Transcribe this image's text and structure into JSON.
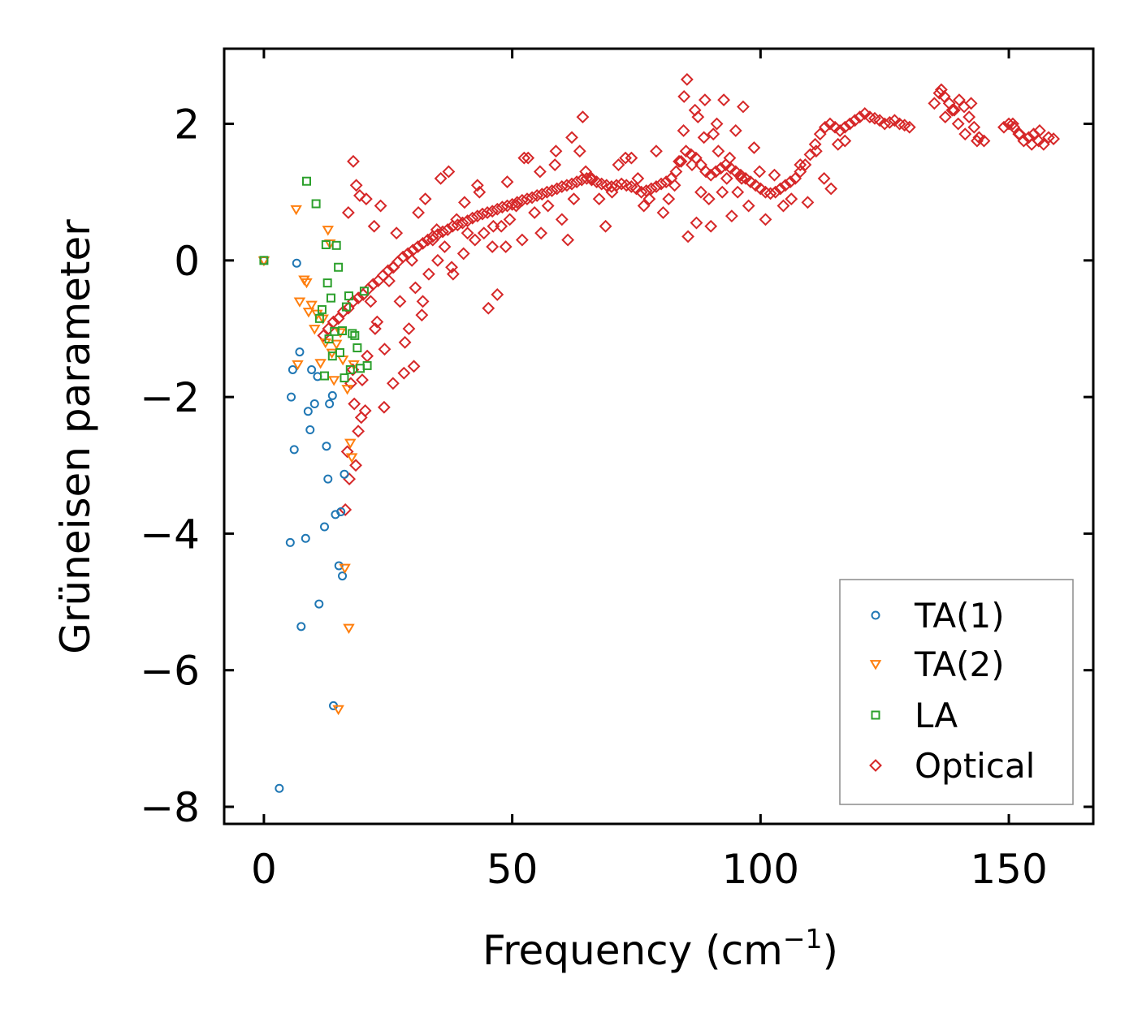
{
  "chart_data": {
    "type": "scatter",
    "xlabel": "Frequency (cm",
    "xlabel_sup": "−1",
    "xlabel_close": ")",
    "ylabel": "Grüneisen parameter",
    "xlim": [
      -8,
      167
    ],
    "ylim": [
      -8.25,
      3.1
    ],
    "xticks": [
      0,
      50,
      100,
      150
    ],
    "yticks": [
      2,
      0,
      -2,
      -4,
      -6,
      -8
    ],
    "ytick_labels": [
      "2",
      "0",
      "−2",
      "−4",
      "−6",
      "−8"
    ],
    "legend_position": "lower-right",
    "series": [
      {
        "name": "TA(1)",
        "marker": "circle",
        "color": "#1f77b4",
        "x": [
          0,
          3.1,
          5.5,
          5.3,
          5.8,
          6.1,
          6.6,
          7.2,
          7.5,
          8.4,
          8.9,
          9.3,
          9.6,
          10.2,
          10.8,
          11.1,
          12.2,
          12.6,
          12.9,
          13.2,
          13.8,
          14.0,
          14.4,
          15.1,
          15.5,
          15.8,
          16.2
        ],
        "y": [
          0,
          -7.73,
          -2.0,
          -4.13,
          -1.6,
          -2.77,
          -0.04,
          -1.34,
          -5.36,
          -4.07,
          -2.21,
          -2.48,
          -1.6,
          -2.1,
          -1.7,
          -5.03,
          -3.9,
          -2.72,
          -3.2,
          -2.1,
          -1.98,
          -6.52,
          -3.72,
          -4.47,
          -3.68,
          -4.62,
          -3.13
        ]
      },
      {
        "name": "TA(2)",
        "marker": "triangle-down",
        "color": "#ff7f0e",
        "x": [
          0,
          6.5,
          6.8,
          7.2,
          8.1,
          8.6,
          9.0,
          9.6,
          10.2,
          10.7,
          11.4,
          11.9,
          12.4,
          12.9,
          13.3,
          13.7,
          14.1,
          14.6,
          15.0,
          15.4,
          15.9,
          16.3,
          16.8,
          17.1,
          17.4,
          17.7,
          18.1
        ],
        "y": [
          0,
          0.75,
          -1.52,
          -0.6,
          -0.28,
          -0.32,
          -0.75,
          -0.65,
          -1.0,
          -0.78,
          -1.5,
          -0.85,
          -1.2,
          0.45,
          0.25,
          -1.35,
          -1.75,
          -1.22,
          -6.57,
          -1.05,
          -1.45,
          -4.5,
          -1.88,
          -5.38,
          -2.67,
          -2.88,
          -1.52
        ]
      },
      {
        "name": "LA",
        "marker": "square",
        "color": "#2ca02c",
        "x": [
          0,
          8.6,
          10.5,
          11.2,
          11.7,
          12.2,
          12.5,
          12.8,
          13.1,
          13.5,
          13.8,
          14.2,
          14.6,
          15.0,
          15.3,
          15.8,
          16.2,
          16.6,
          17.1,
          17.4,
          17.8,
          18.3,
          18.8,
          19.4,
          20.2,
          20.8
        ],
        "y": [
          0,
          1.16,
          0.83,
          -0.85,
          -0.72,
          -1.69,
          0.23,
          -0.33,
          -1.15,
          -0.55,
          -1.4,
          -1.04,
          0.22,
          -0.1,
          -1.35,
          -1.03,
          -1.72,
          -0.68,
          -0.52,
          -1.6,
          -1.07,
          -1.1,
          -1.28,
          -1.58,
          -0.45,
          -1.54
        ]
      },
      {
        "name": "Optical",
        "marker": "diamond",
        "color": "#d62728",
        "x": [
          12,
          13,
          14,
          15,
          16,
          17,
          18,
          19,
          20,
          21,
          22,
          23,
          24,
          25,
          26,
          27,
          28,
          29,
          30,
          31,
          32,
          33,
          34,
          35,
          36,
          37,
          38,
          39,
          40,
          41,
          42,
          43,
          44,
          45,
          46,
          47,
          48,
          49,
          50,
          51,
          52,
          53,
          54,
          55,
          56,
          57,
          58,
          59,
          60,
          61,
          62,
          63,
          64,
          65,
          66,
          67,
          68,
          69,
          70,
          71,
          72,
          73,
          74,
          75,
          76,
          77,
          78,
          79,
          80,
          81,
          82,
          83,
          84,
          85,
          86,
          87,
          88,
          89,
          90,
          91,
          92,
          93,
          94,
          95,
          96,
          97,
          98,
          99,
          100,
          101,
          102,
          103,
          104,
          105,
          106,
          107,
          108,
          109,
          110,
          111,
          112,
          113,
          114,
          115,
          116,
          117,
          118,
          119,
          120,
          121,
          122,
          123,
          124,
          125,
          126,
          127,
          128,
          129,
          130,
          135,
          136,
          137,
          138,
          139,
          140,
          141,
          142,
          143,
          144,
          145,
          149,
          150,
          151,
          152,
          153,
          154,
          155,
          156,
          157,
          158,
          159,
          17.5,
          18.2,
          19.0,
          16.8,
          18.5,
          17.2,
          19.6,
          20.4,
          17.9,
          16.4,
          21.5,
          22.8,
          24.3,
          26.1,
          27.4,
          29.2,
          30.5,
          31.8,
          33.2,
          35.0,
          36.4,
          38.1,
          40.2,
          42.5,
          44.3,
          46.0,
          47.8,
          49.5,
          52.0,
          54.5,
          57.2,
          60.0,
          62.4,
          64.8,
          67.5,
          70.1,
          72.8,
          75.3,
          77.6,
          80.4,
          82.7,
          84.5,
          86.2,
          88.0,
          89.6,
          91.5,
          93.2,
          95.4,
          97.6,
          99.8,
          18.0,
          18.6,
          17.0,
          19.3,
          20.6,
          22.2,
          23.5,
          25.2,
          26.7,
          28.4,
          29.8,
          31.1,
          32.5,
          34.0,
          35.6,
          37.2,
          38.8,
          41.0,
          43.4,
          45.2,
          47.0,
          48.7,
          50.8,
          53.2,
          55.8,
          58.6,
          61.2,
          63.6,
          66.0,
          68.8,
          71.4,
          74.0,
          76.5,
          79.0,
          81.5,
          83.6,
          85.4,
          87.1,
          88.8,
          90.5,
          92.3,
          94.2,
          96.5,
          98.7,
          101.0,
          102.8,
          104.6,
          106.2,
          108.0,
          109.5,
          111.2,
          112.8,
          114.2,
          115.6,
          117.0,
          85.2,
          84.6,
          86.8,
          87.4,
          88.6,
          90.0,
          91.2,
          92.6,
          93.8,
          95.0,
          96.2,
          64.2,
          62.0,
          58.8,
          55.6,
          52.4,
          49.0,
          46.2,
          43.0,
          40.4,
          37.8,
          34.8,
          32.0,
          30.2,
          28.2,
          26.0,
          24.2,
          22.4,
          20.8,
          19.8,
          136.4,
          137.2,
          138.6,
          139.8,
          141.2,
          142.4,
          143.6,
          150.8,
          152.2,
          154.6,
          156.2
        ],
        "y": [
          -1.1,
          -1.0,
          -0.9,
          -0.85,
          -0.75,
          -0.7,
          -0.6,
          -0.55,
          -0.5,
          -0.42,
          -0.35,
          -0.3,
          -0.22,
          -0.15,
          -0.1,
          -0.02,
          0.05,
          0.1,
          0.15,
          0.2,
          0.25,
          0.3,
          0.35,
          0.38,
          0.42,
          0.45,
          0.5,
          0.52,
          0.55,
          0.58,
          0.62,
          0.65,
          0.68,
          0.7,
          0.72,
          0.75,
          0.78,
          0.8,
          0.82,
          0.85,
          0.88,
          0.9,
          0.92,
          0.95,
          0.97,
          1.0,
          1.02,
          1.05,
          1.08,
          1.1,
          1.12,
          1.15,
          1.18,
          1.2,
          1.18,
          1.15,
          1.12,
          1.1,
          1.08,
          1.1,
          1.12,
          1.1,
          1.08,
          1.05,
          1.0,
          1.02,
          1.05,
          1.08,
          1.12,
          1.15,
          1.2,
          1.3,
          1.45,
          1.6,
          1.55,
          1.5,
          1.4,
          1.3,
          1.25,
          1.3,
          1.35,
          1.4,
          1.35,
          1.3,
          1.25,
          1.2,
          1.15,
          1.1,
          1.05,
          1.0,
          0.98,
          1.0,
          1.05,
          1.1,
          1.15,
          1.2,
          1.3,
          1.4,
          1.55,
          1.7,
          1.85,
          1.95,
          2.0,
          1.95,
          1.9,
          1.95,
          2.0,
          2.05,
          2.1,
          2.15,
          2.1,
          2.08,
          2.05,
          2.0,
          2.02,
          2.05,
          2.0,
          1.98,
          1.95,
          2.3,
          2.45,
          2.4,
          2.3,
          2.2,
          2.35,
          2.25,
          2.1,
          1.95,
          1.8,
          1.75,
          1.95,
          2.0,
          1.95,
          1.85,
          1.75,
          1.8,
          1.85,
          1.75,
          1.7,
          1.8,
          1.78,
          -1.8,
          -2.1,
          -2.5,
          -2.8,
          -3.0,
          -3.2,
          -2.3,
          -2.2,
          -1.6,
          -3.65,
          -0.6,
          -0.9,
          -1.3,
          -0.1,
          -0.6,
          -1.0,
          -0.4,
          -0.8,
          -0.2,
          0.0,
          0.2,
          -0.2,
          0.1,
          0.3,
          0.4,
          0.2,
          0.5,
          0.6,
          0.3,
          0.7,
          0.8,
          0.6,
          0.9,
          1.3,
          0.9,
          1.0,
          1.5,
          1.2,
          0.9,
          0.7,
          1.1,
          1.9,
          1.4,
          1.0,
          0.9,
          1.6,
          1.2,
          1.0,
          0.8,
          1.3,
          1.45,
          1.1,
          0.7,
          0.95,
          0.9,
          0.5,
          0.8,
          -0.3,
          0.4,
          -1.2,
          0.0,
          0.7,
          0.9,
          0.3,
          1.2,
          1.3,
          0.6,
          0.4,
          1.0,
          -0.7,
          -0.5,
          0.2,
          0.8,
          1.5,
          0.4,
          1.4,
          0.3,
          1.6,
          1.2,
          0.5,
          1.4,
          1.5,
          0.8,
          1.6,
          0.9,
          1.45,
          0.35,
          0.55,
          2.35,
          1.85,
          1.0,
          0.65,
          2.25,
          1.65,
          0.6,
          1.25,
          0.8,
          0.9,
          1.4,
          0.85,
          1.6,
          1.2,
          1.05,
          1.7,
          1.75,
          2.65,
          2.4,
          2.2,
          2.1,
          1.8,
          0.5,
          2.0,
          2.35,
          1.5,
          1.9,
          1.2,
          2.1,
          1.8,
          1.6,
          1.3,
          1.5,
          1.15,
          0.5,
          1.1,
          0.85,
          -0.1,
          0.45,
          -0.6,
          -1.55,
          -1.65,
          -1.8,
          -2.15,
          -1.0,
          -1.4,
          -1.75,
          2.5,
          2.1,
          2.2,
          2.0,
          1.85,
          2.3,
          1.75,
          2.0,
          1.85,
          1.7,
          1.9
        ]
      }
    ]
  }
}
